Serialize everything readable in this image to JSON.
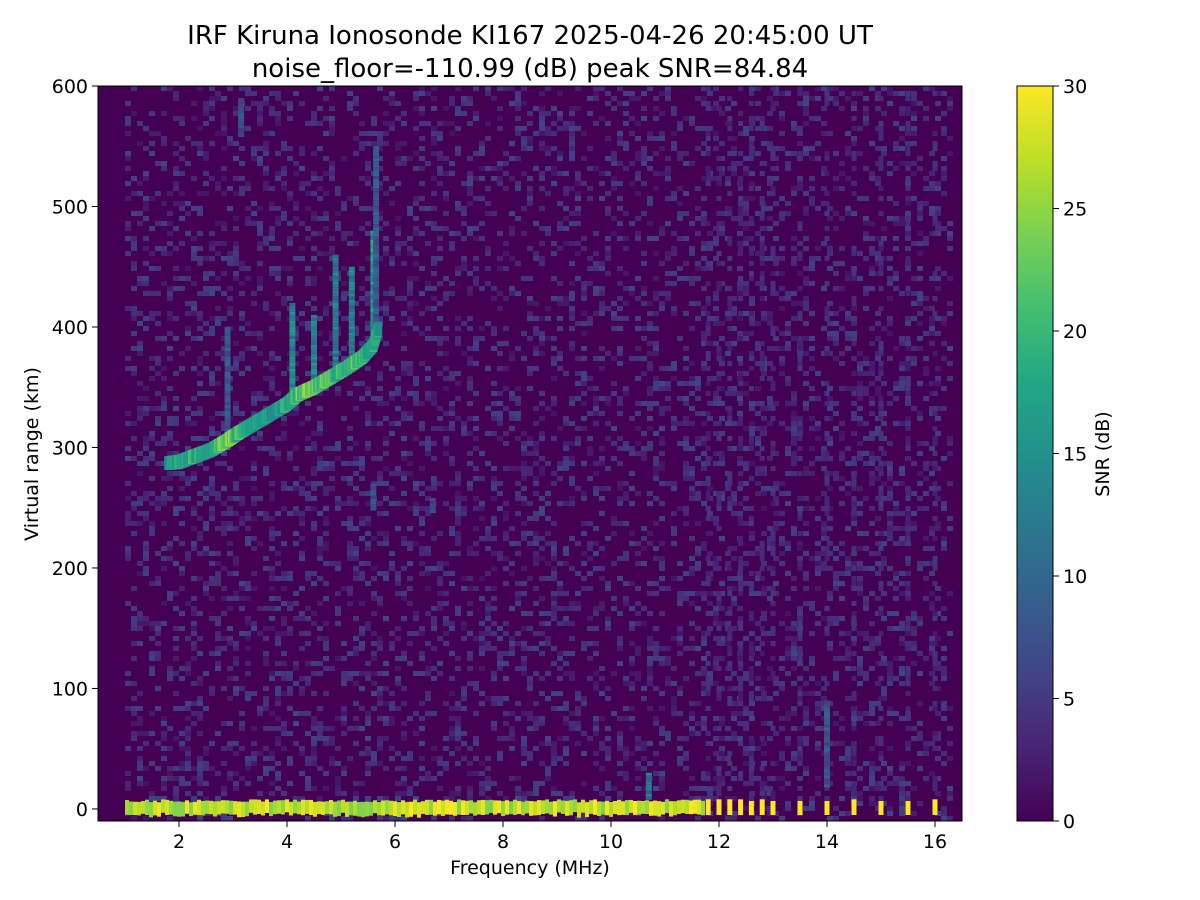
{
  "chart_data": {
    "type": "heatmap",
    "title": "IRF Kiruna Ionosonde KI167 2025-04-26 20:45:00  UT",
    "subtitle": "noise_floor=-110.99 (dB) peak SNR=84.84",
    "xlabel": "Frequency (MHz)",
    "ylabel": "Virtual range (km)",
    "xlim": [
      0.5,
      16.5
    ],
    "ylim": [
      -10,
      600
    ],
    "x_ticks": [
      2,
      4,
      6,
      8,
      10,
      12,
      14,
      16
    ],
    "y_ticks": [
      0,
      100,
      200,
      300,
      400,
      500,
      600
    ],
    "x_data_range": [
      1.0,
      16.3
    ],
    "colorbar": {
      "label": "SNR (dB)",
      "range": [
        0,
        30
      ],
      "ticks": [
        0,
        5,
        10,
        15,
        20,
        25,
        30
      ],
      "colormap": "viridis"
    },
    "ground_echo_band": {
      "range_km": [
        -5,
        8
      ],
      "snr_db": 30,
      "continuous_until_mhz": 11.7
    },
    "discrete_channels_mhz": [
      11.8,
      12.0,
      12.2,
      12.4,
      12.6,
      12.8,
      13.0,
      13.5,
      14.0,
      14.5,
      15.0,
      15.5,
      16.0
    ],
    "f_layer_trace": [
      {
        "f": 1.8,
        "h": 287,
        "snr": 18
      },
      {
        "f": 2.0,
        "h": 288,
        "snr": 20
      },
      {
        "f": 2.3,
        "h": 293,
        "snr": 21
      },
      {
        "f": 2.6,
        "h": 298,
        "snr": 19
      },
      {
        "f": 2.9,
        "h": 306,
        "snr": 27
      },
      {
        "f": 3.1,
        "h": 312,
        "snr": 22
      },
      {
        "f": 3.4,
        "h": 320,
        "snr": 18
      },
      {
        "f": 3.7,
        "h": 328,
        "snr": 17
      },
      {
        "f": 4.0,
        "h": 336,
        "snr": 20
      },
      {
        "f": 4.2,
        "h": 344,
        "snr": 24
      },
      {
        "f": 4.5,
        "h": 350,
        "snr": 26
      },
      {
        "f": 4.8,
        "h": 358,
        "snr": 22
      },
      {
        "f": 5.1,
        "h": 366,
        "snr": 24
      },
      {
        "f": 5.4,
        "h": 375,
        "snr": 21
      },
      {
        "f": 5.6,
        "h": 385,
        "snr": 20
      },
      {
        "f": 5.7,
        "h": 400,
        "snr": 19
      }
    ],
    "spread_echoes": [
      {
        "f": 4.1,
        "h_range": [
          340,
          420
        ],
        "snr": 16
      },
      {
        "f": 4.5,
        "h_range": [
          350,
          410
        ],
        "snr": 15
      },
      {
        "f": 4.9,
        "h_range": [
          360,
          460
        ],
        "snr": 14
      },
      {
        "f": 5.2,
        "h_range": [
          370,
          450
        ],
        "snr": 15
      },
      {
        "f": 5.6,
        "h_range": [
          380,
          480
        ],
        "snr": 18
      },
      {
        "f": 5.65,
        "h_range": [
          400,
          550
        ],
        "snr": 10
      },
      {
        "f": 2.9,
        "h_range": [
          300,
          400
        ],
        "snr": 9
      },
      {
        "f": 3.15,
        "h_range": [
          560,
          590
        ],
        "snr": 8
      },
      {
        "f": 5.6,
        "h_range": [
          250,
          270
        ],
        "snr": 8
      },
      {
        "f": 6.7,
        "h_range": [
          248,
          258
        ],
        "snr": 7
      },
      {
        "f": 14.0,
        "h_range": [
          20,
          90
        ],
        "snr": 9
      },
      {
        "f": 10.7,
        "h_range": [
          10,
          30
        ],
        "snr": 13
      }
    ]
  }
}
